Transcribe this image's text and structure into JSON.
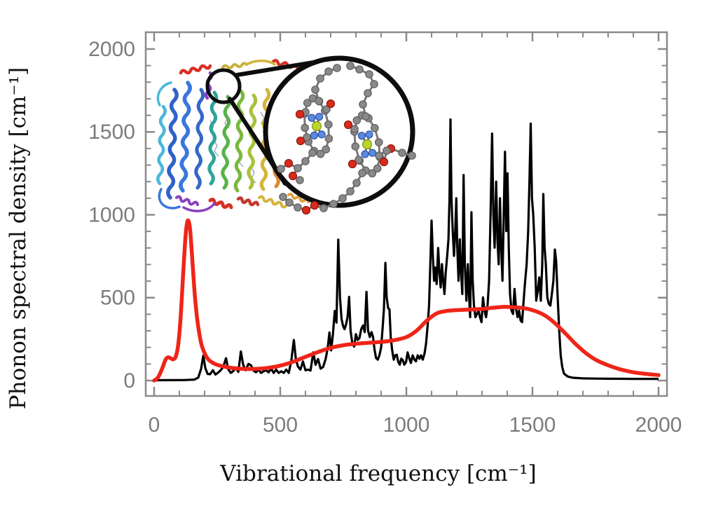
{
  "figure": {
    "background": "#ffffff"
  },
  "chart_data": {
    "type": "line",
    "title": "",
    "xlabel": "Vibrational frequency [cm⁻¹]",
    "ylabel": "Phonon spectral density [cm⁻¹]",
    "xlim": [
      0,
      2000
    ],
    "ylim": [
      0,
      2000
    ],
    "xticks": [
      0,
      500,
      1000,
      1500,
      2000
    ],
    "yticks": [
      0,
      500,
      1000,
      1500,
      2000
    ],
    "minor_tick_interval": 100,
    "grid": false,
    "legend": "none",
    "frame": true,
    "axis_color": "#8a8a8a",
    "tick_label_color": "#7b7b7b",
    "series": [
      {
        "name": "black-curve",
        "description": "sharply peaked atomistic phonon spectral density",
        "color": "#000000",
        "stroke_width": 3.2,
        "points": [
          [
            0,
            2
          ],
          [
            120,
            3
          ],
          [
            160,
            6
          ],
          [
            175,
            18
          ],
          [
            186,
            70
          ],
          [
            195,
            150
          ],
          [
            203,
            75
          ],
          [
            212,
            40
          ],
          [
            222,
            38
          ],
          [
            233,
            62
          ],
          [
            243,
            36
          ],
          [
            254,
            48
          ],
          [
            264,
            62
          ],
          [
            274,
            82
          ],
          [
            285,
            135
          ],
          [
            294,
            68
          ],
          [
            304,
            46
          ],
          [
            314,
            58
          ],
          [
            324,
            76
          ],
          [
            334,
            52
          ],
          [
            344,
            175
          ],
          [
            353,
            95
          ],
          [
            363,
            62
          ],
          [
            374,
            100
          ],
          [
            384,
            92
          ],
          [
            394,
            60
          ],
          [
            404,
            50
          ],
          [
            414,
            66
          ],
          [
            424,
            46
          ],
          [
            434,
            56
          ],
          [
            444,
            62
          ],
          [
            454,
            50
          ],
          [
            464,
            72
          ],
          [
            474,
            46
          ],
          [
            484,
            66
          ],
          [
            494,
            46
          ],
          [
            504,
            56
          ],
          [
            514,
            46
          ],
          [
            524,
            66
          ],
          [
            534,
            46
          ],
          [
            544,
            120
          ],
          [
            554,
            245
          ],
          [
            562,
            130
          ],
          [
            570,
            85
          ],
          [
            580,
            66
          ],
          [
            590,
            115
          ],
          [
            600,
            62
          ],
          [
            610,
            66
          ],
          [
            620,
            60
          ],
          [
            631,
            170
          ],
          [
            640,
            95
          ],
          [
            650,
            130
          ],
          [
            660,
            72
          ],
          [
            670,
            82
          ],
          [
            680,
            130
          ],
          [
            688,
            195
          ],
          [
            695,
            290
          ],
          [
            702,
            182
          ],
          [
            709,
            280
          ],
          [
            716,
            420
          ],
          [
            723,
            350
          ],
          [
            730,
            850
          ],
          [
            737,
            500
          ],
          [
            743,
            372
          ],
          [
            749,
            330
          ],
          [
            755,
            310
          ],
          [
            761,
            340
          ],
          [
            767,
            382
          ],
          [
            773,
            505
          ],
          [
            779,
            300
          ],
          [
            786,
            222
          ],
          [
            793,
            205
          ],
          [
            800,
            280
          ],
          [
            807,
            245
          ],
          [
            814,
            256
          ],
          [
            821,
            310
          ],
          [
            828,
            332
          ],
          [
            835,
            292
          ],
          [
            842,
            535
          ],
          [
            848,
            302
          ],
          [
            855,
            262
          ],
          [
            862,
            292
          ],
          [
            868,
            262
          ],
          [
            874,
            186
          ],
          [
            880,
            136
          ],
          [
            887,
            126
          ],
          [
            894,
            156
          ],
          [
            900,
            200
          ],
          [
            906,
            320
          ],
          [
            911,
            432
          ],
          [
            917,
            710
          ],
          [
            922,
            502
          ],
          [
            928,
            436
          ],
          [
            933,
            430
          ],
          [
            938,
            262
          ],
          [
            944,
            182
          ],
          [
            950,
            126
          ],
          [
            956,
            152
          ],
          [
            962,
            156
          ],
          [
            968,
            112
          ],
          [
            974,
            96
          ],
          [
            980,
            132
          ],
          [
            986,
            122
          ],
          [
            992,
            96
          ],
          [
            999,
            112
          ],
          [
            1005,
            170
          ],
          [
            1012,
            132
          ],
          [
            1018,
            106
          ],
          [
            1025,
            152
          ],
          [
            1032,
            126
          ],
          [
            1038,
            116
          ],
          [
            1045,
            152
          ],
          [
            1052,
            132
          ],
          [
            1058,
            152
          ],
          [
            1065,
            126
          ],
          [
            1072,
            162
          ],
          [
            1078,
            222
          ],
          [
            1084,
            322
          ],
          [
            1090,
            452
          ],
          [
            1095,
            700
          ],
          [
            1100,
            965
          ],
          [
            1105,
            752
          ],
          [
            1110,
            602
          ],
          [
            1115,
            682
          ],
          [
            1120,
            582
          ],
          [
            1126,
            800
          ],
          [
            1131,
            652
          ],
          [
            1136,
            562
          ],
          [
            1141,
            702
          ],
          [
            1146,
            602
          ],
          [
            1151,
            522
          ],
          [
            1156,
            652
          ],
          [
            1162,
            752
          ],
          [
            1167,
            852
          ],
          [
            1171,
            1100
          ],
          [
            1175,
            1575
          ],
          [
            1179,
            1102
          ],
          [
            1184,
            902
          ],
          [
            1189,
            752
          ],
          [
            1194,
            902
          ],
          [
            1198,
            1100
          ],
          [
            1202,
            802
          ],
          [
            1207,
            602
          ],
          [
            1212,
            852
          ],
          [
            1217,
            652
          ],
          [
            1222,
            522
          ],
          [
            1227,
            1240
          ],
          [
            1232,
            702
          ],
          [
            1238,
            482
          ],
          [
            1244,
            702
          ],
          [
            1249,
            502
          ],
          [
            1253,
            382
          ],
          [
            1258,
            1015
          ],
          [
            1263,
            602
          ],
          [
            1268,
            452
          ],
          [
            1274,
            382
          ],
          [
            1280,
            402
          ],
          [
            1286,
            422
          ],
          [
            1292,
            382
          ],
          [
            1298,
            352
          ],
          [
            1304,
            502
          ],
          [
            1310,
            422
          ],
          [
            1316,
            382
          ],
          [
            1322,
            452
          ],
          [
            1328,
            602
          ],
          [
            1334,
            1002
          ],
          [
            1340,
            1490
          ],
          [
            1345,
            1002
          ],
          [
            1350,
            802
          ],
          [
            1356,
            1200
          ],
          [
            1361,
            852
          ],
          [
            1366,
            702
          ],
          [
            1371,
            1100
          ],
          [
            1376,
            802
          ],
          [
            1381,
            602
          ],
          [
            1386,
            1002
          ],
          [
            1391,
            1380
          ],
          [
            1396,
            902
          ],
          [
            1401,
            1250
          ],
          [
            1406,
            802
          ],
          [
            1411,
            522
          ],
          [
            1417,
            422
          ],
          [
            1423,
            402
          ],
          [
            1429,
            552
          ],
          [
            1435,
            432
          ],
          [
            1441,
            382
          ],
          [
            1447,
            422
          ],
          [
            1453,
            362
          ],
          [
            1459,
            352
          ],
          [
            1465,
            482
          ],
          [
            1471,
            602
          ],
          [
            1477,
            702
          ],
          [
            1483,
            902
          ],
          [
            1488,
            1200
          ],
          [
            1493,
            1550
          ],
          [
            1498,
            1102
          ],
          [
            1503,
            1002
          ],
          [
            1509,
            802
          ],
          [
            1515,
            482
          ],
          [
            1521,
            542
          ],
          [
            1527,
            622
          ],
          [
            1533,
            482
          ],
          [
            1539,
            702
          ],
          [
            1543,
            1125
          ],
          [
            1548,
            802
          ],
          [
            1553,
            702
          ],
          [
            1559,
            502
          ],
          [
            1565,
            462
          ],
          [
            1571,
            452
          ],
          [
            1577,
            522
          ],
          [
            1583,
            602
          ],
          [
            1589,
            790
          ],
          [
            1594,
            722
          ],
          [
            1600,
            502
          ],
          [
            1606,
            302
          ],
          [
            1612,
            152
          ],
          [
            1618,
            82
          ],
          [
            1625,
            42
          ],
          [
            1640,
            24
          ],
          [
            1660,
            17
          ],
          [
            1700,
            13
          ],
          [
            1750,
            12
          ],
          [
            1800,
            11
          ],
          [
            1900,
            10
          ],
          [
            2000,
            10
          ]
        ]
      },
      {
        "name": "red-curve",
        "description": "smooth broadened phonon spectral density",
        "color": "#ef2519",
        "stroke_width": 5.5,
        "points": [
          [
            0,
            0
          ],
          [
            15,
            18
          ],
          [
            30,
            65
          ],
          [
            45,
            125
          ],
          [
            55,
            140
          ],
          [
            65,
            135
          ],
          [
            75,
            128
          ],
          [
            85,
            142
          ],
          [
            95,
            210
          ],
          [
            105,
            380
          ],
          [
            115,
            640
          ],
          [
            125,
            880
          ],
          [
            133,
            965
          ],
          [
            142,
            920
          ],
          [
            150,
            760
          ],
          [
            160,
            540
          ],
          [
            170,
            380
          ],
          [
            180,
            275
          ],
          [
            190,
            205
          ],
          [
            205,
            150
          ],
          [
            220,
            120
          ],
          [
            250,
            95
          ],
          [
            300,
            78
          ],
          [
            350,
            71
          ],
          [
            400,
            70
          ],
          [
            450,
            76
          ],
          [
            500,
            90
          ],
          [
            550,
            113
          ],
          [
            600,
            143
          ],
          [
            650,
            172
          ],
          [
            700,
            197
          ],
          [
            750,
            213
          ],
          [
            800,
            222
          ],
          [
            850,
            228
          ],
          [
            900,
            233
          ],
          [
            950,
            243
          ],
          [
            1000,
            262
          ],
          [
            1040,
            300
          ],
          [
            1080,
            360
          ],
          [
            1120,
            405
          ],
          [
            1160,
            420
          ],
          [
            1200,
            425
          ],
          [
            1250,
            428
          ],
          [
            1300,
            432
          ],
          [
            1350,
            440
          ],
          [
            1390,
            445
          ],
          [
            1430,
            442
          ],
          [
            1470,
            436
          ],
          [
            1510,
            420
          ],
          [
            1550,
            392
          ],
          [
            1590,
            345
          ],
          [
            1630,
            285
          ],
          [
            1670,
            222
          ],
          [
            1710,
            168
          ],
          [
            1750,
            126
          ],
          [
            1800,
            92
          ],
          [
            1850,
            67
          ],
          [
            1900,
            50
          ],
          [
            1950,
            40
          ],
          [
            2000,
            33
          ]
        ]
      }
    ],
    "inset": {
      "name": "protein-with-magnified-chlorophyll-pair",
      "atom_colors": {
        "carbon": "#898989",
        "oxygen": "#d92b1c",
        "nitrogen": "#5b8ade",
        "magnesium": "#b9d42c"
      },
      "ribbon_palette": [
        "#2f62c8",
        "#3a77dd",
        "#49b8d8",
        "#2fa39a",
        "#58b24a",
        "#a8c23c",
        "#d4b43a",
        "#dd8a2e",
        "#d83025",
        "#8a3fc0"
      ],
      "outline_color": "#0d0d0d"
    }
  }
}
